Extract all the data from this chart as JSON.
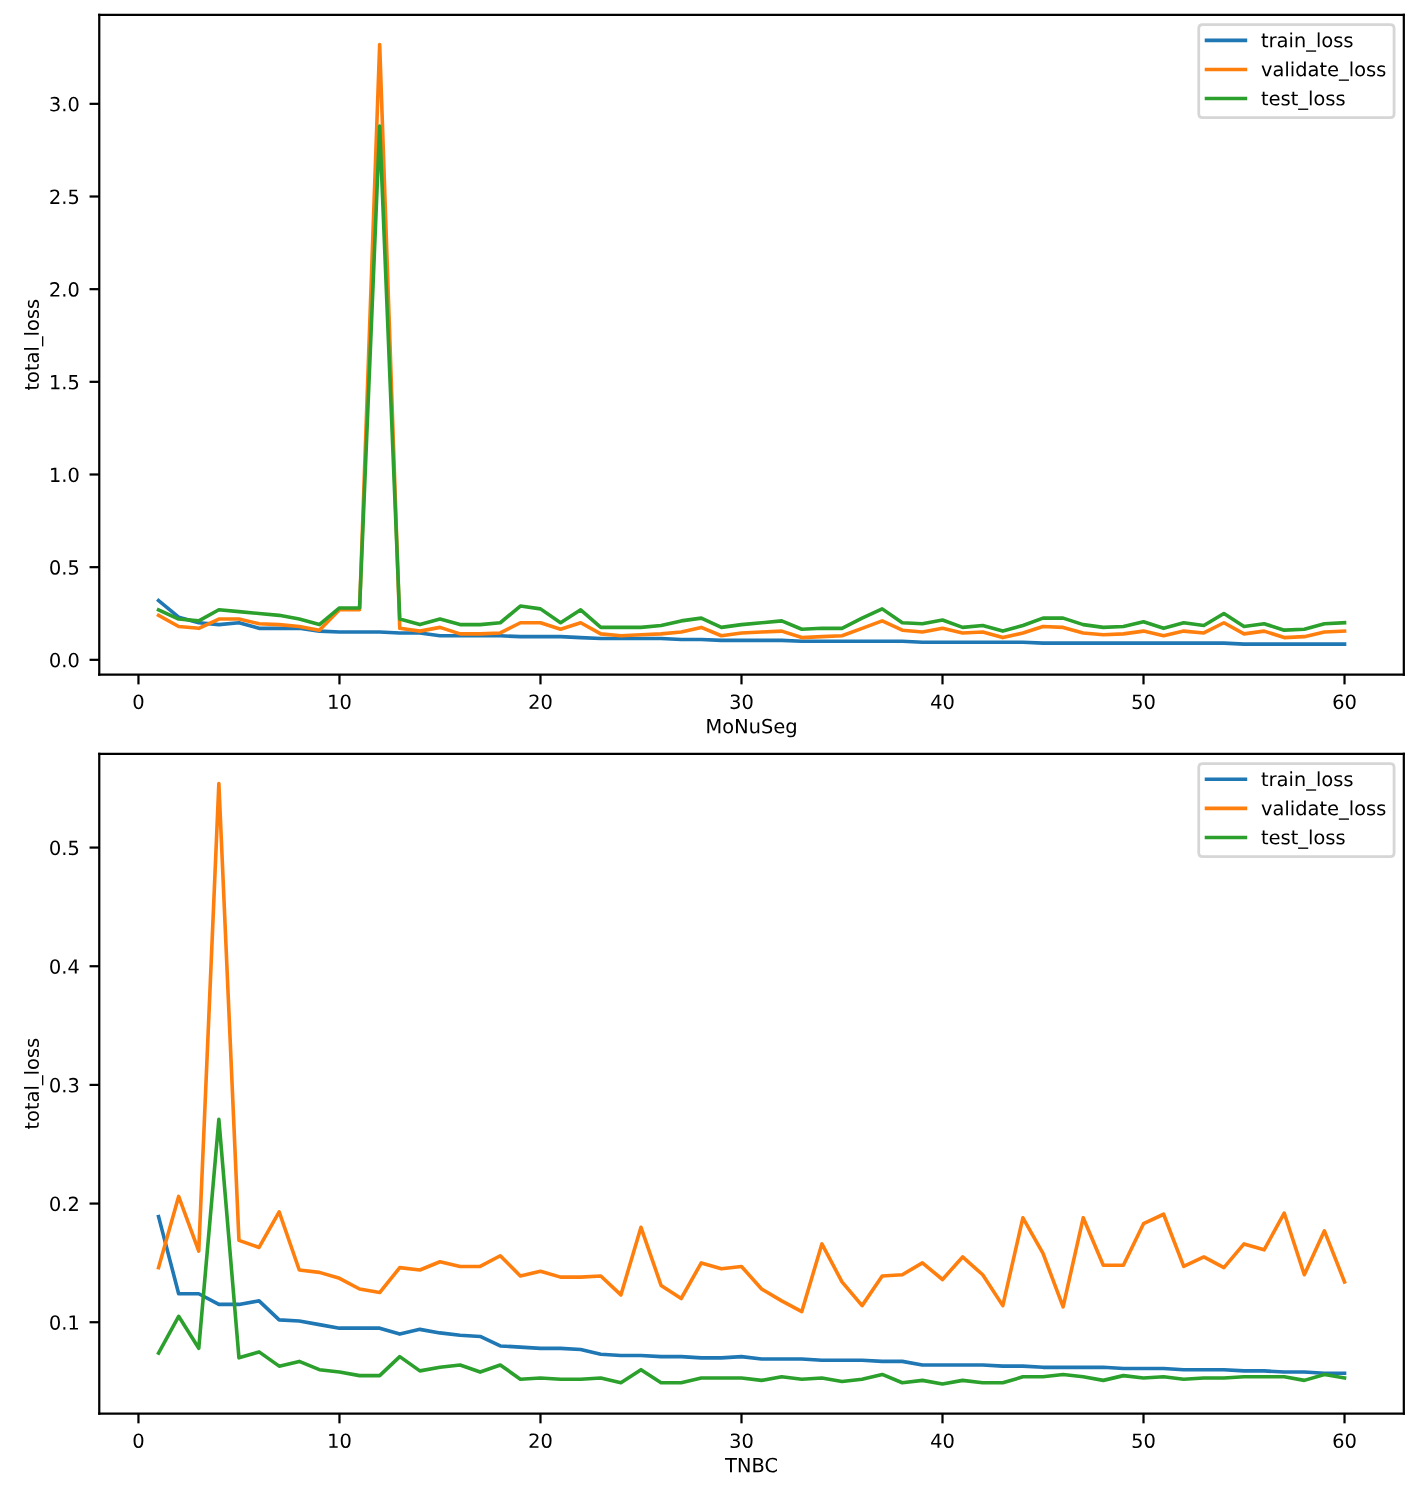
{
  "chart_data": [
    {
      "type": "line",
      "xlabel": "MoNuSeg",
      "ylabel": "total_loss",
      "legend": "top right",
      "grid": false,
      "xlim": [
        -1.95,
        62.95
      ],
      "ylim": [
        -0.08,
        3.48
      ],
      "xticks": [
        0,
        10,
        20,
        30,
        40,
        50,
        60
      ],
      "yticks": [
        {
          "value": 0,
          "label": "0.0"
        },
        0.5,
        {
          "value": 1,
          "label": "1.0"
        },
        1.5,
        {
          "value": 2,
          "label": "2.0"
        },
        2.5,
        {
          "value": 3,
          "label": "3.0"
        }
      ],
      "x": [
        1,
        2,
        3,
        4,
        5,
        6,
        7,
        8,
        9,
        10,
        11,
        12,
        13,
        14,
        15,
        16,
        17,
        18,
        19,
        20,
        21,
        22,
        23,
        24,
        25,
        26,
        27,
        28,
        29,
        30,
        31,
        32,
        33,
        34,
        35,
        36,
        37,
        38,
        39,
        40,
        41,
        42,
        43,
        44,
        45,
        46,
        47,
        48,
        49,
        50,
        51,
        52,
        53,
        54,
        55,
        56,
        57,
        58,
        59,
        60
      ],
      "series": [
        {
          "name": "train_loss",
          "color": "#1f77b4",
          "values": [
            0.32,
            0.23,
            0.2,
            0.19,
            0.2,
            0.17,
            0.17,
            0.17,
            0.155,
            0.15,
            0.15,
            0.15,
            0.145,
            0.145,
            0.13,
            0.13,
            0.13,
            0.13,
            0.125,
            0.125,
            0.125,
            0.12,
            0.115,
            0.115,
            0.115,
            0.115,
            0.11,
            0.11,
            0.105,
            0.105,
            0.105,
            0.105,
            0.1,
            0.1,
            0.1,
            0.1,
            0.1,
            0.1,
            0.095,
            0.095,
            0.095,
            0.095,
            0.095,
            0.095,
            0.09,
            0.09,
            0.09,
            0.09,
            0.09,
            0.09,
            0.09,
            0.09,
            0.09,
            0.09,
            0.085,
            0.085,
            0.085,
            0.085,
            0.085,
            0.085
          ]
        },
        {
          "name": "validate_loss",
          "color": "#ff7f0e",
          "values": [
            0.24,
            0.18,
            0.17,
            0.22,
            0.22,
            0.195,
            0.19,
            0.18,
            0.16,
            0.27,
            0.27,
            3.32,
            0.17,
            0.155,
            0.175,
            0.14,
            0.14,
            0.145,
            0.2,
            0.2,
            0.165,
            0.2,
            0.14,
            0.13,
            0.135,
            0.14,
            0.15,
            0.175,
            0.13,
            0.145,
            0.15,
            0.155,
            0.12,
            0.125,
            0.13,
            0.17,
            0.21,
            0.16,
            0.15,
            0.17,
            0.145,
            0.15,
            0.12,
            0.145,
            0.18,
            0.175,
            0.145,
            0.135,
            0.14,
            0.155,
            0.13,
            0.155,
            0.145,
            0.2,
            0.14,
            0.155,
            0.12,
            0.125,
            0.15,
            0.155
          ]
        },
        {
          "name": "test_loss",
          "color": "#2ca02c",
          "values": [
            0.27,
            0.22,
            0.21,
            0.27,
            0.26,
            0.25,
            0.24,
            0.22,
            0.19,
            0.28,
            0.28,
            2.88,
            0.22,
            0.19,
            0.22,
            0.19,
            0.19,
            0.2,
            0.29,
            0.275,
            0.2,
            0.27,
            0.175,
            0.175,
            0.175,
            0.185,
            0.21,
            0.225,
            0.175,
            0.19,
            0.2,
            0.21,
            0.165,
            0.17,
            0.17,
            0.225,
            0.275,
            0.2,
            0.195,
            0.215,
            0.175,
            0.185,
            0.155,
            0.185,
            0.225,
            0.225,
            0.19,
            0.175,
            0.18,
            0.205,
            0.17,
            0.2,
            0.185,
            0.25,
            0.18,
            0.195,
            0.16,
            0.165,
            0.195,
            0.2
          ]
        }
      ]
    },
    {
      "type": "line",
      "xlabel": "TNBC",
      "ylabel": "total_loss",
      "legend": "top right",
      "grid": false,
      "xlim": [
        -1.95,
        62.95
      ],
      "ylim": [
        0.023,
        0.579
      ],
      "xticks": [
        0,
        10,
        20,
        30,
        40,
        50,
        60
      ],
      "yticks": [
        0.1,
        0.2,
        0.3,
        0.4,
        0.5
      ],
      "x": [
        1,
        2,
        3,
        4,
        5,
        6,
        7,
        8,
        9,
        10,
        11,
        12,
        13,
        14,
        15,
        16,
        17,
        18,
        19,
        20,
        21,
        22,
        23,
        24,
        25,
        26,
        27,
        28,
        29,
        30,
        31,
        32,
        33,
        34,
        35,
        36,
        37,
        38,
        39,
        40,
        41,
        42,
        43,
        44,
        45,
        46,
        47,
        48,
        49,
        50,
        51,
        52,
        53,
        54,
        55,
        56,
        57,
        58,
        59,
        60
      ],
      "series": [
        {
          "name": "train_loss",
          "color": "#1f77b4",
          "values": [
            0.189,
            0.124,
            0.124,
            0.115,
            0.115,
            0.118,
            0.102,
            0.101,
            0.098,
            0.095,
            0.095,
            0.095,
            0.09,
            0.094,
            0.091,
            0.089,
            0.088,
            0.08,
            0.079,
            0.078,
            0.078,
            0.077,
            0.073,
            0.072,
            0.072,
            0.071,
            0.071,
            0.07,
            0.07,
            0.071,
            0.069,
            0.069,
            0.069,
            0.068,
            0.068,
            0.068,
            0.067,
            0.067,
            0.064,
            0.064,
            0.064,
            0.064,
            0.063,
            0.063,
            0.062,
            0.062,
            0.062,
            0.062,
            0.061,
            0.061,
            0.061,
            0.06,
            0.06,
            0.06,
            0.059,
            0.059,
            0.058,
            0.058,
            0.057,
            0.057
          ]
        },
        {
          "name": "validate_loss",
          "color": "#ff7f0e",
          "values": [
            0.146,
            0.206,
            0.16,
            0.554,
            0.169,
            0.163,
            0.193,
            0.144,
            0.142,
            0.137,
            0.128,
            0.125,
            0.146,
            0.144,
            0.151,
            0.147,
            0.147,
            0.156,
            0.139,
            0.143,
            0.138,
            0.138,
            0.139,
            0.123,
            0.18,
            0.131,
            0.12,
            0.15,
            0.145,
            0.147,
            0.128,
            0.118,
            0.109,
            0.166,
            0.134,
            0.114,
            0.139,
            0.14,
            0.15,
            0.136,
            0.155,
            0.14,
            0.114,
            0.188,
            0.158,
            0.113,
            0.188,
            0.148,
            0.148,
            0.183,
            0.191,
            0.147,
            0.155,
            0.146,
            0.166,
            0.161,
            0.192,
            0.14,
            0.177,
            0.134
          ]
        },
        {
          "name": "test_loss",
          "color": "#2ca02c",
          "values": [
            0.074,
            0.105,
            0.078,
            0.271,
            0.07,
            0.075,
            0.063,
            0.067,
            0.06,
            0.058,
            0.055,
            0.055,
            0.071,
            0.059,
            0.062,
            0.064,
            0.058,
            0.064,
            0.052,
            0.053,
            0.052,
            0.052,
            0.053,
            0.049,
            0.06,
            0.049,
            0.049,
            0.053,
            0.053,
            0.053,
            0.051,
            0.054,
            0.052,
            0.053,
            0.05,
            0.052,
            0.056,
            0.049,
            0.051,
            0.048,
            0.051,
            0.049,
            0.049,
            0.054,
            0.054,
            0.056,
            0.054,
            0.051,
            0.055,
            0.053,
            0.054,
            0.052,
            0.053,
            0.053,
            0.054,
            0.054,
            0.054,
            0.051,
            0.056,
            0.053
          ]
        }
      ]
    }
  ]
}
